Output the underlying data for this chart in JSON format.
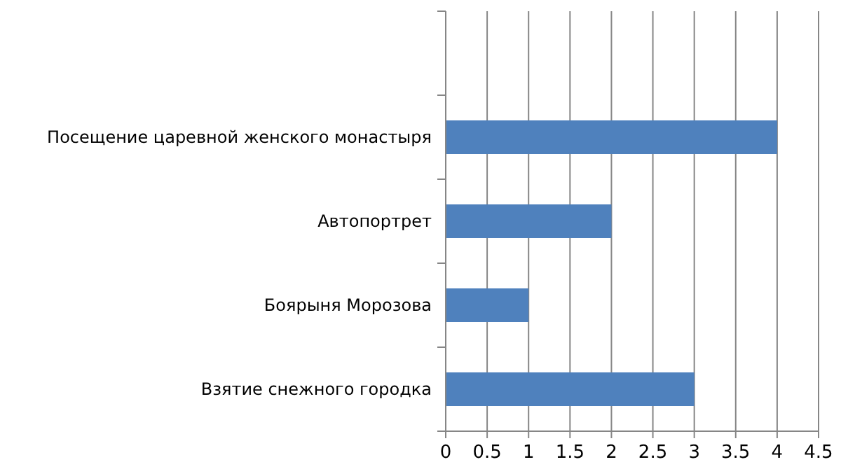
{
  "chart_data": {
    "type": "bar",
    "orientation": "horizontal",
    "categories": [
      null,
      "Посещение царевной женского монастыря",
      "Автопортрет",
      "Боярыня Морозова",
      "Взятие снежного городка"
    ],
    "values": [
      null,
      4,
      2,
      1,
      3
    ],
    "color": "#4f81bd",
    "xlim": [
      0,
      4.5
    ],
    "xticks": [
      0,
      0.5,
      1,
      1.5,
      2,
      2.5,
      3,
      3.5,
      4,
      4.5
    ],
    "grid": "x"
  }
}
